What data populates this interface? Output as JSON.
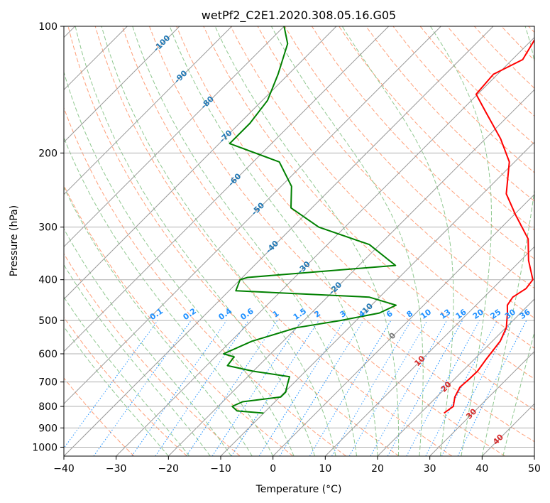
{
  "chart_data": {
    "type": "line",
    "title": "wetPf2_C2E1.2020.308.05.16.G05",
    "xlabel": "Temperature (°C)",
    "ylabel": "Pressure (hPa)",
    "xlim": [
      -40,
      50
    ],
    "ylim": [
      1050,
      100
    ],
    "y_scale": "log",
    "x_ticks": [
      -40,
      -30,
      -20,
      -10,
      0,
      10,
      20,
      30,
      40,
      50
    ],
    "y_ticks": [
      100,
      200,
      300,
      400,
      500,
      600,
      700,
      800,
      900,
      1000
    ],
    "grid": true,
    "skew": "temperature lines skewed 45° (skew-T log-p diagram)",
    "colors": {
      "temperature": "#ff0000",
      "dewpoint": "#008000",
      "isotherms": "#999999",
      "dry_adiabats": "#ffa07a",
      "moist_adiabats": "#90c890",
      "mixing_ratio": "#1e90ff",
      "iso_label_blue": "#1f77b4",
      "iso_label_red": "#d62728"
    },
    "series": [
      {
        "key": "temperature",
        "points": [
          [
            830,
            24.5
          ],
          [
            800,
            25.0
          ],
          [
            760,
            23.5
          ],
          [
            720,
            22.6
          ],
          [
            690,
            22.8
          ],
          [
            660,
            22.9
          ],
          [
            620,
            22.3
          ],
          [
            560,
            21.5
          ],
          [
            520,
            20.1
          ],
          [
            480,
            17.5
          ],
          [
            460,
            16.0
          ],
          [
            440,
            15.5
          ],
          [
            420,
            16.4
          ],
          [
            400,
            16.0
          ],
          [
            360,
            11.5
          ],
          [
            320,
            7.3
          ],
          [
            280,
            0.2
          ],
          [
            250,
            -5.5
          ],
          [
            210,
            -11.0
          ],
          [
            185,
            -17.1
          ],
          [
            160,
            -25.0
          ],
          [
            145,
            -30.3
          ],
          [
            130,
            -30.8
          ],
          [
            120,
            -28.0
          ],
          [
            110,
            -29.2
          ],
          [
            100,
            -30.6
          ]
        ]
      },
      {
        "key": "dewpoint",
        "points": [
          [
            830,
            -10.0
          ],
          [
            820,
            -15.5
          ],
          [
            800,
            -17.3
          ],
          [
            780,
            -16.2
          ],
          [
            760,
            -9.8
          ],
          [
            740,
            -9.8
          ],
          [
            710,
            -10.9
          ],
          [
            680,
            -12.0
          ],
          [
            660,
            -20.0
          ],
          [
            640,
            -26.0
          ],
          [
            610,
            -26.4
          ],
          [
            600,
            -29.0
          ],
          [
            560,
            -26.0
          ],
          [
            520,
            -20.0
          ],
          [
            500,
            -13.0
          ],
          [
            480,
            -7.0
          ],
          [
            460,
            -5.3
          ],
          [
            440,
            -12.0
          ],
          [
            425,
            -38.7
          ],
          [
            400,
            -40.0
          ],
          [
            395,
            -39.0
          ],
          [
            370,
            -13.0
          ],
          [
            330,
            -22.0
          ],
          [
            300,
            -35.0
          ],
          [
            270,
            -44.0
          ],
          [
            240,
            -48.0
          ],
          [
            210,
            -55.0
          ],
          [
            190,
            -68.0
          ],
          [
            170,
            -68.0
          ],
          [
            150,
            -69.0
          ],
          [
            130,
            -72.0
          ],
          [
            110,
            -76.0
          ],
          [
            100,
            -80.0
          ]
        ]
      }
    ],
    "isotherm_labels": [
      "-100",
      "-90",
      "-80",
      "-70",
      "-60",
      "-50",
      "-40",
      "-30",
      "-20",
      "-10",
      "0",
      "10",
      "20",
      "30",
      "40"
    ],
    "mixing_ratio_labels": [
      "0.1",
      "0.2",
      "0.4",
      "0.6",
      "1",
      "1.5",
      "2",
      "3",
      "4",
      "6",
      "8",
      "10",
      "13",
      "16",
      "20",
      "25",
      "30",
      "36"
    ]
  }
}
